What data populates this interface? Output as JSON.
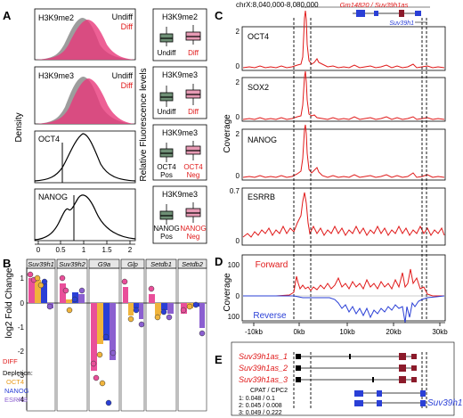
{
  "panels": {
    "A": "A",
    "B": "B",
    "C": "C",
    "D": "D",
    "E": "E"
  },
  "colors": {
    "undiff": "#8c8c8c",
    "diff": "#e8387a",
    "red": "#e01919",
    "blue": "#2a3fd6",
    "orange": "#f0b43c",
    "purple": "#8b5fd0",
    "pink": "#e94f9a",
    "green": "#6e8f75",
    "pinkbox": "#e79ab4"
  },
  "panelA": {
    "density_ylabel": "Density",
    "fluor_ylabel": "Relative Fluorescence levels",
    "xticks": [
      "0",
      "0.5",
      "1",
      "1.5",
      "2"
    ],
    "rows": [
      {
        "title": "H3K9me2",
        "legend1": "Undiff",
        "legend2": "Diff",
        "box_title": "H3K9me2",
        "box_labels": [
          "Undiff",
          "Diff"
        ]
      },
      {
        "title": "H3K9me3",
        "legend1": "Undiff",
        "legend2": "Diff",
        "box_title": "H3K9me3",
        "box_labels": [
          "Undiff",
          "Diff"
        ]
      },
      {
        "title": "OCT4",
        "box_title": "H3K9me3",
        "box_labels": [
          "OCT4\nPos",
          "OCT4\nNeg"
        ]
      },
      {
        "title": "NANOG",
        "box_title": "H3K9me3",
        "box_labels": [
          "NANOG\nPos",
          "NANOG\nNeg"
        ]
      }
    ]
  },
  "panelB": {
    "ylabel": "log2 Fold Change",
    "yticks": [
      "1",
      "0",
      "-1",
      "-2",
      "-3",
      "-4"
    ],
    "genes": [
      "Suv39h1",
      "Suv39h2",
      "G9a",
      "Glp",
      "Setdb1",
      "Setdb2"
    ],
    "legend": {
      "diff": "DIFF",
      "depletion": "Depletion:",
      "oct4": "OCT4",
      "nanog": "NANOG",
      "esrrb": "ESRRB"
    }
  },
  "panelC": {
    "coord": "chrX:8,040,000-8,080,000",
    "gene_top": "Gm14820 / Suv39h1as",
    "gene_bottom": "Suv39h1",
    "ylabel": "Coverage",
    "tracks": [
      {
        "name": "OCT4",
        "ymax": "2",
        "ymin": "0"
      },
      {
        "name": "SOX2",
        "ymax": "2",
        "ymin": "0"
      },
      {
        "name": "NANOG",
        "ymax": "2",
        "ymin": "0"
      },
      {
        "name": "ESRRB",
        "ymax": "0.7",
        "ymin": "0"
      }
    ]
  },
  "panelD": {
    "ylabel": "Coverage",
    "forward": "Forward",
    "reverse": "Reverse",
    "yticks": [
      "100",
      "0",
      "100"
    ],
    "xticks": [
      "-10kb",
      "0kb",
      "10kb",
      "20kb",
      "30kb"
    ]
  },
  "panelE": {
    "transcripts": [
      "Suv39h1as_1",
      "Suv39h1as_2",
      "Suv39h1as_3"
    ],
    "table_header": "CPAT / CPC2",
    "rows": [
      "1: 0.048 / 0.1",
      "2: 0.045 / 0.008",
      "3: 0.049 / 0.222"
    ],
    "gene": "Suv39h1"
  }
}
